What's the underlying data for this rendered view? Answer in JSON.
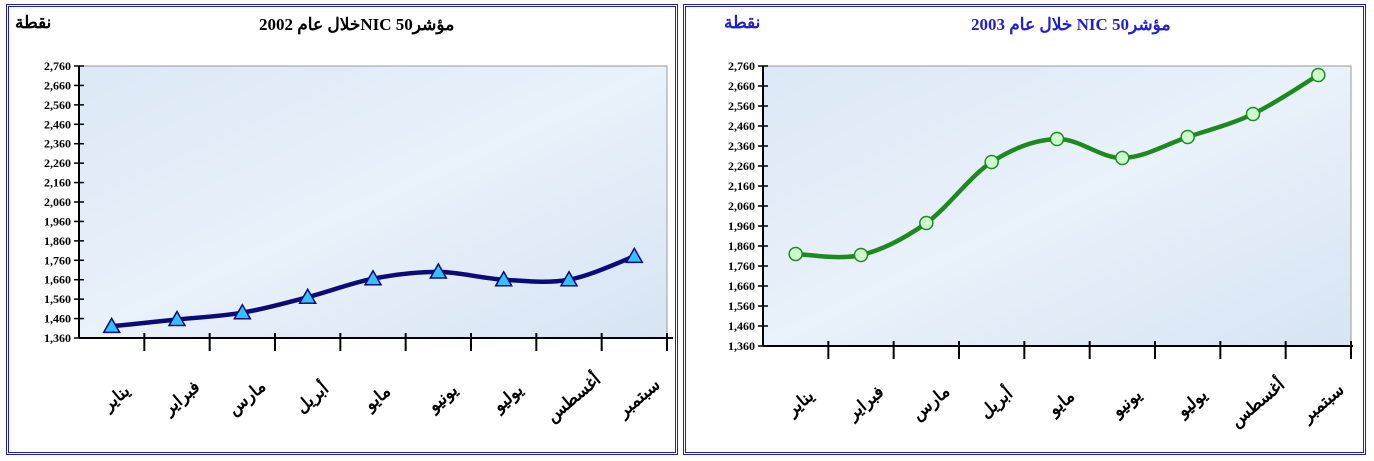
{
  "chart_data": [
    {
      "type": "line",
      "title": "مؤشر50 NICخلال عام 2002",
      "unit_label": "نقطة",
      "categories": [
        "يناير",
        "فبراير",
        "مارس",
        "أبريل",
        "مايو",
        "يونيو",
        "يوليو",
        "أغسطس",
        "سبتمبر"
      ],
      "series": [
        {
          "values": [
            1420,
            1455,
            1490,
            1570,
            1665,
            1700,
            1660,
            1660,
            1780
          ],
          "color": "#0a0a78",
          "marker": "triangle",
          "marker_color": "#33c2ff"
        }
      ],
      "ylim": [
        1360,
        2760
      ],
      "yticks": [
        "1,360",
        "1,460",
        "1,560",
        "1,660",
        "1,760",
        "1,860",
        "1,960",
        "2,060",
        "2,160",
        "2,260",
        "2,360",
        "2,460",
        "2,560",
        "2,660",
        "2,760"
      ],
      "grid": false
    },
    {
      "type": "line",
      "title": "مؤشر50 NIC خلال عام 2003",
      "unit_label": "نقطة",
      "categories": [
        "يناير",
        "فبراير",
        "مارس",
        "أبريل",
        "مايو",
        "يونيو",
        "يوليو",
        "أغسطس",
        "سبتمبر"
      ],
      "series": [
        {
          "values": [
            1820,
            1815,
            1975,
            2280,
            2395,
            2300,
            2405,
            2520,
            2715
          ],
          "color": "#1c8a1c",
          "marker": "circle",
          "marker_color": "#ccffcc"
        }
      ],
      "ylim": [
        1360,
        2760
      ],
      "yticks": [
        "1,360",
        "1,460",
        "1,560",
        "1,660",
        "1,760",
        "1,860",
        "1,960",
        "2,060",
        "2,160",
        "2,260",
        "2,360",
        "2,460",
        "2,560",
        "2,660",
        "2,760"
      ],
      "grid": false
    }
  ]
}
